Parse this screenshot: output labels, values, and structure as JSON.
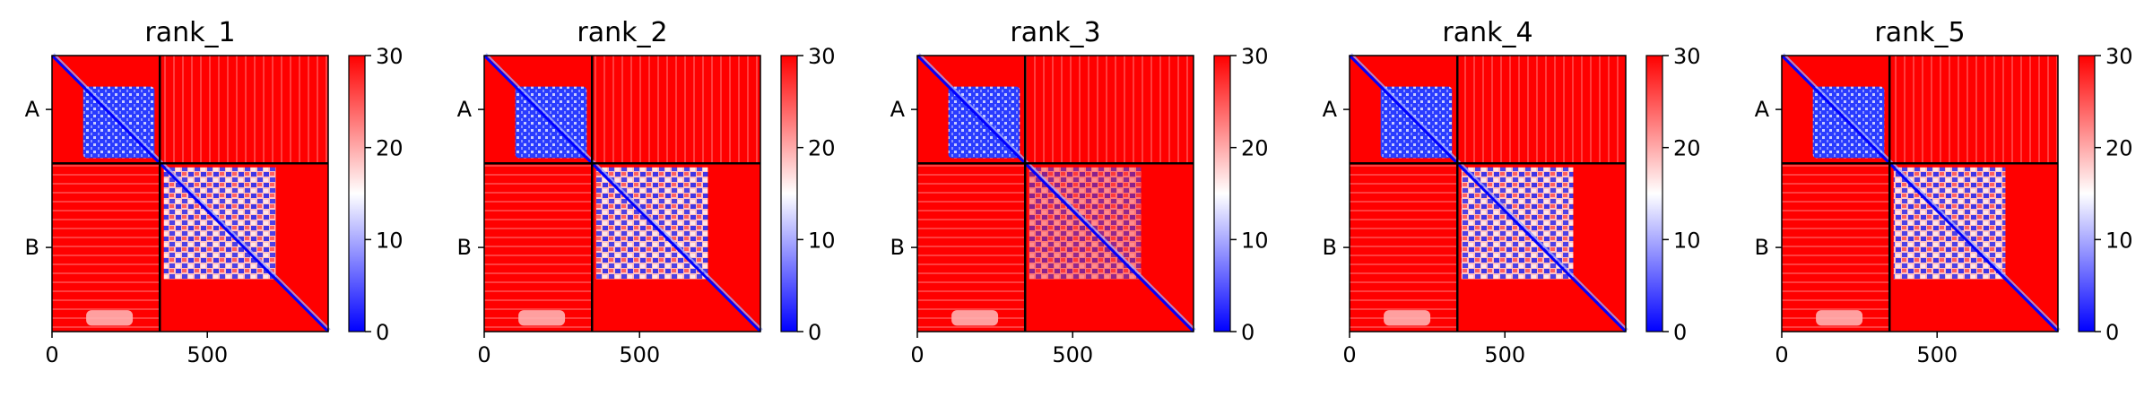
{
  "chart_data": [
    {
      "type": "heatmap",
      "title": "rank_1",
      "x_ticks": [
        "0",
        "500"
      ],
      "x_tick_values": [
        0,
        500
      ],
      "x_range": [
        0,
        889
      ],
      "y_range": [
        0,
        889
      ],
      "boundary": 347,
      "chain_labels": [
        "A",
        "B"
      ],
      "colorbar": {
        "ticks": [
          "0",
          "10",
          "20",
          "30"
        ],
        "tick_values": [
          0,
          10,
          20,
          30
        ],
        "range": [
          0,
          30
        ]
      },
      "colormap": {
        "low": "#0000ff",
        "mid": "#ffffff",
        "high": "#ff0000"
      }
    },
    {
      "type": "heatmap",
      "title": "rank_2",
      "x_ticks": [
        "0",
        "500"
      ],
      "x_tick_values": [
        0,
        500
      ],
      "x_range": [
        0,
        889
      ],
      "y_range": [
        0,
        889
      ],
      "boundary": 347,
      "chain_labels": [
        "A",
        "B"
      ],
      "colorbar": {
        "ticks": [
          "0",
          "10",
          "20",
          "30"
        ],
        "tick_values": [
          0,
          10,
          20,
          30
        ],
        "range": [
          0,
          30
        ]
      },
      "colormap": {
        "low": "#0000ff",
        "mid": "#ffffff",
        "high": "#ff0000"
      }
    },
    {
      "type": "heatmap",
      "title": "rank_3",
      "x_ticks": [
        "0",
        "500"
      ],
      "x_tick_values": [
        0,
        500
      ],
      "x_range": [
        0,
        889
      ],
      "y_range": [
        0,
        889
      ],
      "boundary": 347,
      "chain_labels": [
        "A",
        "B"
      ],
      "colorbar": {
        "ticks": [
          "0",
          "10",
          "20",
          "30"
        ],
        "tick_values": [
          0,
          10,
          20,
          30
        ],
        "range": [
          0,
          30
        ]
      },
      "colormap": {
        "low": "#0000ff",
        "mid": "#ffffff",
        "high": "#ff0000"
      }
    },
    {
      "type": "heatmap",
      "title": "rank_4",
      "x_ticks": [
        "0",
        "500"
      ],
      "x_tick_values": [
        0,
        500
      ],
      "x_range": [
        0,
        889
      ],
      "y_range": [
        0,
        889
      ],
      "boundary": 347,
      "chain_labels": [
        "A",
        "B"
      ],
      "colorbar": {
        "ticks": [
          "0",
          "10",
          "20",
          "30"
        ],
        "tick_values": [
          0,
          10,
          20,
          30
        ],
        "range": [
          0,
          30
        ]
      },
      "colormap": {
        "low": "#0000ff",
        "mid": "#ffffff",
        "high": "#ff0000"
      }
    },
    {
      "type": "heatmap",
      "title": "rank_5",
      "x_ticks": [
        "0",
        "500"
      ],
      "x_tick_values": [
        0,
        500
      ],
      "x_range": [
        0,
        889
      ],
      "y_range": [
        0,
        889
      ],
      "boundary": 347,
      "chain_labels": [
        "A",
        "B"
      ],
      "colorbar": {
        "ticks": [
          "0",
          "10",
          "20",
          "30"
        ],
        "tick_values": [
          0,
          10,
          20,
          30
        ],
        "range": [
          0,
          30
        ]
      },
      "colormap": {
        "low": "#0000ff",
        "mid": "#ffffff",
        "high": "#ff0000"
      }
    }
  ]
}
